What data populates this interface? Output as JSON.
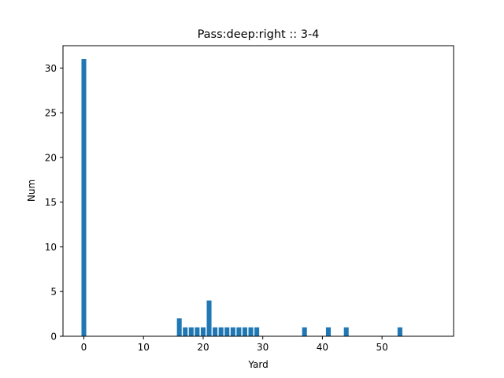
{
  "chart_data": {
    "type": "bar",
    "title": "Pass:deep:right :: 3-4",
    "xlabel": "Yard",
    "ylabel": "Num",
    "xlim": [
      -3.5,
      62.0
    ],
    "ylim": [
      0,
      32.5
    ],
    "xticks": [
      0,
      10,
      20,
      30,
      40,
      50
    ],
    "yticks": [
      0,
      5,
      10,
      15,
      20,
      25,
      30
    ],
    "grid": false,
    "bar_color": "#1f77b4",
    "x": [
      0,
      16,
      17,
      18,
      19,
      20,
      21,
      22,
      23,
      24,
      25,
      26,
      27,
      28,
      29,
      37,
      41,
      44,
      53
    ],
    "values": [
      31,
      2,
      1,
      1,
      1,
      1,
      4,
      1,
      1,
      1,
      1,
      1,
      1,
      1,
      1,
      1,
      1,
      1,
      1
    ]
  }
}
